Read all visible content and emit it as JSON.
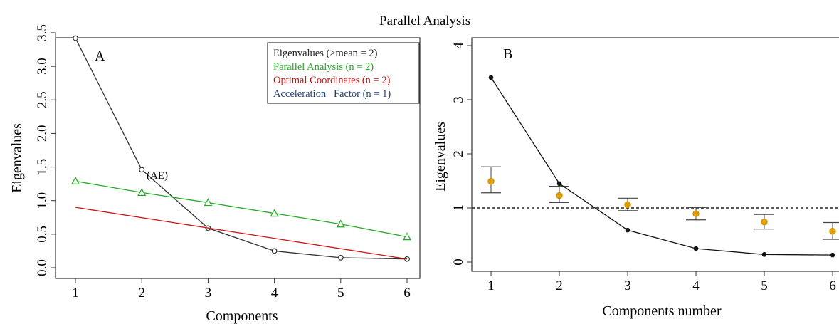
{
  "figure_title": "Parallel Analysis",
  "chart_data": [
    {
      "type": "line",
      "panel_label": "A",
      "xlabel": "Components",
      "ylabel": "Eigenvalues",
      "xlim": [
        1,
        6
      ],
      "ylim": [
        0,
        3.5
      ],
      "x_ticks": [
        "1",
        "2",
        "3",
        "4",
        "5",
        "6"
      ],
      "y_ticks": [
        "0.0",
        "0.5",
        "1.0",
        "1.5",
        "2.0",
        "2.5",
        "3.0",
        "3.5"
      ],
      "grid": false,
      "legend_position": "top-right",
      "legend": [
        {
          "text": "Eigenvalues (>mean = 2)",
          "color": "#222222"
        },
        {
          "text": "Parallel Analysis (n = 2)",
          "color": "#22aa22"
        },
        {
          "text": "Optimal Coordinates (n = 2)",
          "color": "#cc1111"
        },
        {
          "text": "Acceleration   Factor (n = 1)",
          "color": "#1f3f7a"
        }
      ],
      "annotation": {
        "text": "(AE)",
        "x": 2,
        "y": 1.45
      },
      "x": [
        1,
        2,
        3,
        4,
        5,
        6
      ],
      "series": [
        {
          "role": "eigenvalues",
          "color": "#333333",
          "marker": "circle",
          "values": [
            3.42,
            1.46,
            0.59,
            0.25,
            0.15,
            0.13
          ]
        },
        {
          "role": "parallel",
          "color": "#22aa22",
          "marker": "triangle",
          "values": [
            1.29,
            1.12,
            0.97,
            0.81,
            0.65,
            0.46
          ]
        },
        {
          "role": "optimal-coordinates",
          "color": "#cc1111",
          "marker": "none",
          "x": [
            1,
            6
          ],
          "values": [
            0.9,
            0.13
          ]
        }
      ]
    },
    {
      "type": "line",
      "panel_label": "B",
      "xlabel": "Components number",
      "ylabel": "Eigenvalues",
      "xlim": [
        1,
        6
      ],
      "ylim": [
        0,
        4
      ],
      "x_ticks": [
        "1",
        "2",
        "3",
        "4",
        "5",
        "6"
      ],
      "y_ticks": [
        "0",
        "1",
        "2",
        "3",
        "4"
      ],
      "grid": false,
      "reference_line": {
        "y": 1,
        "style": "dashed"
      },
      "x": [
        1,
        2,
        3,
        4,
        5,
        6
      ],
      "series": [
        {
          "role": "eigenvalues",
          "color": "#111111",
          "marker": "dot",
          "values": [
            3.41,
            1.45,
            0.59,
            0.25,
            0.14,
            0.13
          ]
        }
      ],
      "random_eigenvalues": {
        "color": "#e0a000",
        "mean": [
          1.49,
          1.23,
          1.06,
          0.89,
          0.74,
          0.57
        ],
        "lower": [
          1.28,
          1.1,
          0.95,
          0.78,
          0.61,
          0.42
        ],
        "upper": [
          1.76,
          1.4,
          1.18,
          1.01,
          0.88,
          0.73
        ]
      }
    }
  ]
}
